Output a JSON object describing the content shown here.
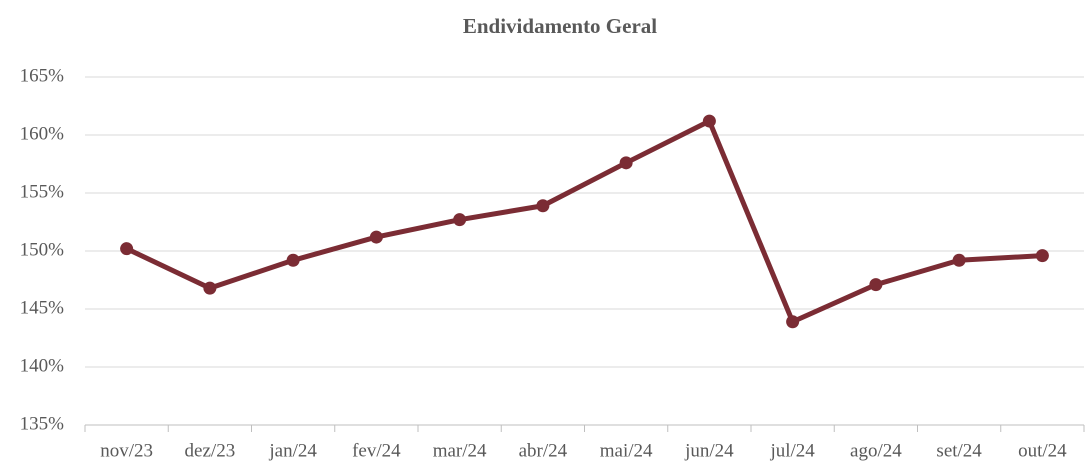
{
  "chart_data": {
    "type": "line",
    "title": "Endividamento Geral",
    "categories": [
      "nov/23",
      "dez/23",
      "jan/24",
      "fev/24",
      "mar/24",
      "abr/24",
      "mai/24",
      "jun/24",
      "jul/24",
      "ago/24",
      "set/24",
      "out/24"
    ],
    "series": [
      {
        "name": "Endividamento Geral",
        "color": "#7b2c34",
        "values": [
          150.2,
          146.8,
          149.2,
          151.2,
          152.7,
          153.9,
          157.6,
          161.2,
          143.9,
          147.1,
          149.2,
          149.6
        ]
      }
    ],
    "ylim": [
      135,
      165
    ],
    "yticks": [
      {
        "value": 135,
        "label": "135%"
      },
      {
        "value": 140,
        "label": "140%"
      },
      {
        "value": 145,
        "label": "145%"
      },
      {
        "value": 150,
        "label": "150%"
      },
      {
        "value": 155,
        "label": "155%"
      },
      {
        "value": 160,
        "label": "160%"
      },
      {
        "value": 165,
        "label": "165%"
      }
    ],
    "grid": true
  }
}
